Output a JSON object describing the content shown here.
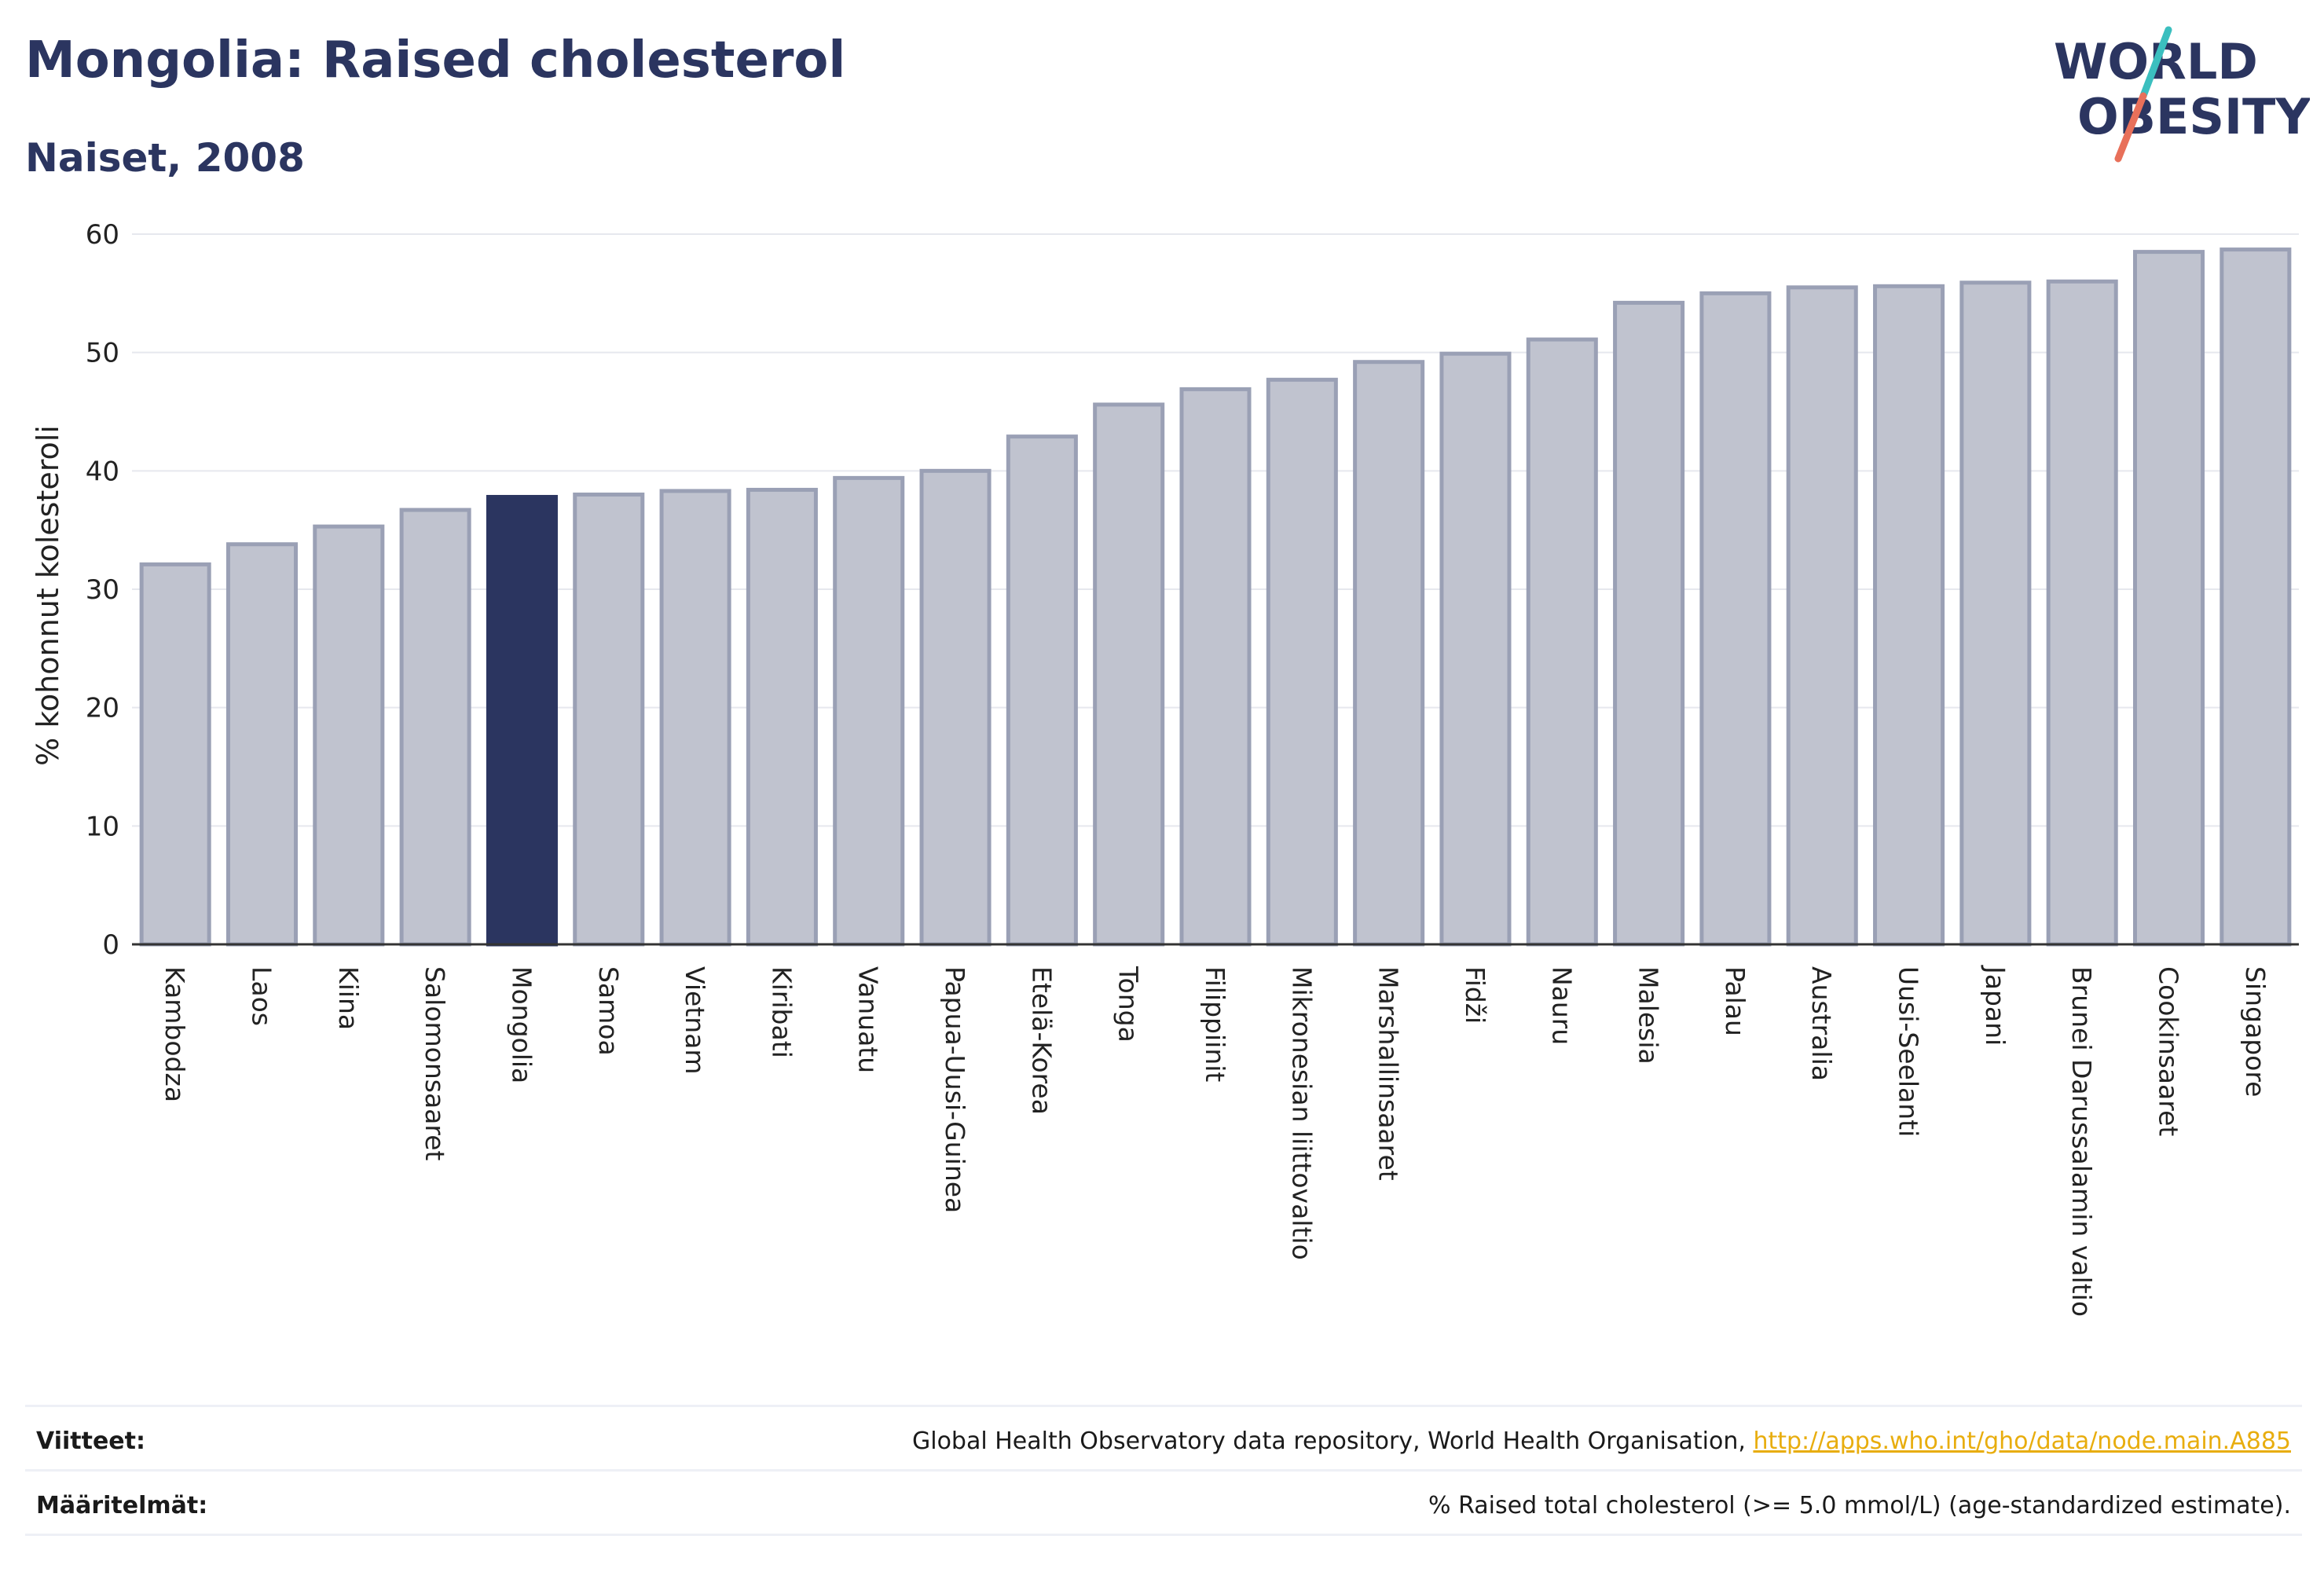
{
  "header": {
    "title": "Mongolia: Raised cholesterol",
    "subtitle": "Naiset, 2008",
    "logo_text": "WORLD OBESITY"
  },
  "footer": {
    "sources_label": "Viitteet:",
    "sources_text": "Global Health Observatory data repository, World Health Organisation,",
    "sources_link": "http://apps.who.int/gho/data/node.main.A885",
    "definitions_label": "Määritelmät:",
    "definitions_text": "% Raised total cholesterol (>= 5.0 mmol/L) (age-standardized estimate)."
  },
  "colors": {
    "bar": "#c0c3cf",
    "bar_border": "#9aa0b5",
    "highlight": "#2b3560",
    "logo_dark": "#2b3560",
    "logo_teal": "#3bbfbf",
    "logo_coral": "#e8705a",
    "link": "#e8ad0e"
  },
  "chart_data": {
    "type": "bar",
    "title": "Mongolia: Raised cholesterol",
    "subtitle": "Naiset, 2008",
    "xlabel": "",
    "ylabel": "% kohonnut kolesteroli",
    "ylim": [
      0,
      60
    ],
    "yticks": [
      0,
      10,
      20,
      30,
      40,
      50,
      60
    ],
    "grid": true,
    "highlight": "Mongolia",
    "categories": [
      "Kambodza",
      "Laos",
      "Kiina",
      "Salomonsaaret",
      "Mongolia",
      "Samoa",
      "Vietnam",
      "Kiribati",
      "Vanuatu",
      "Papua-Uusi-Guinea",
      "Etelä-Korea",
      "Tonga",
      "Filippiinit",
      "Mikronesian liittovaltio",
      "Marshallinsaaret",
      "Fidži",
      "Nauru",
      "Malesia",
      "Palau",
      "Australia",
      "Uusi-Seelanti",
      "Japani",
      "Brunei Darussalamin valtio",
      "Cookinsaaret",
      "Singapore"
    ],
    "values": [
      32.1,
      33.8,
      35.3,
      36.7,
      37.8,
      38.0,
      38.3,
      38.4,
      39.4,
      40.0,
      42.9,
      45.6,
      46.9,
      47.7,
      49.2,
      49.9,
      51.1,
      54.2,
      55.0,
      55.5,
      55.6,
      55.9,
      56.0,
      58.5,
      58.7
    ]
  }
}
